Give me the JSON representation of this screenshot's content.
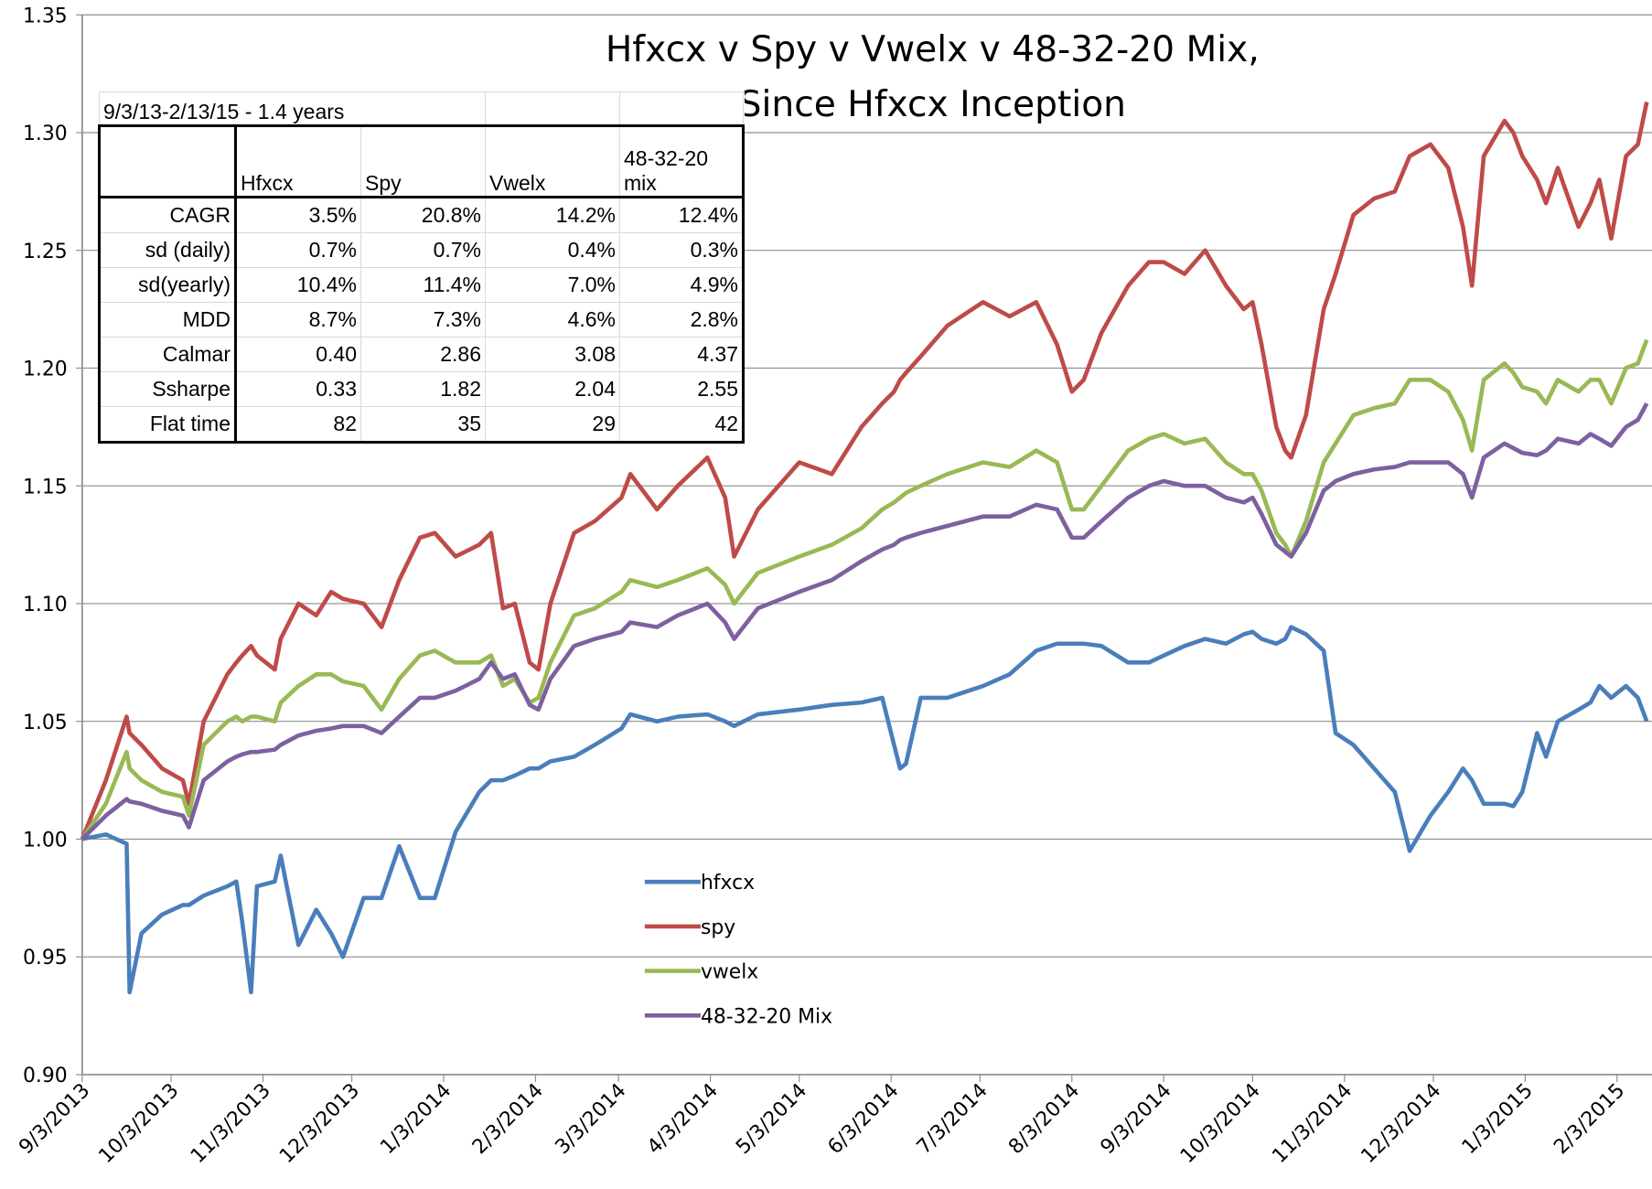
{
  "chart_data": {
    "type": "line",
    "title": [
      "Hfxcx v Spy v Vwelx v 48-32-20 Mix,",
      "Since Hfxcx Inception"
    ],
    "x": [
      "9/3/2013",
      "9/11/2013",
      "9/18/2013",
      "9/19/2013",
      "9/23/2013",
      "9/30/2013",
      "10/7/2013",
      "10/9/2013",
      "10/14/2013",
      "10/22/2013",
      "10/25/2013",
      "10/27/2013",
      "10/30/2013",
      "11/1/2013",
      "11/7/2013",
      "11/9/2013",
      "11/15/2013",
      "11/21/2013",
      "11/26/2013",
      "11/30/2013",
      "12/7/2013",
      "12/13/2013",
      "12/19/2013",
      "12/26/2013",
      "12/31/2013",
      "1/7/2014",
      "1/15/2014",
      "1/19/2014",
      "1/23/2014",
      "1/27/2014",
      "2/1/2014",
      "2/4/2014",
      "2/8/2014",
      "2/16/2014",
      "2/23/2014",
      "3/4/2014",
      "3/7/2014",
      "3/16/2014",
      "3/23/2014",
      "4/2/2014",
      "4/8/2014",
      "4/11/2014",
      "4/19/2014",
      "5/3/2014",
      "5/14/2014",
      "5/24/2014",
      "5/31/2014",
      "6/4/2014",
      "6/6/2014",
      "6/8/2014",
      "6/13/2014",
      "6/22/2014",
      "7/4/2014",
      "7/13/2014",
      "7/22/2014",
      "7/29/2014",
      "8/3/2014",
      "8/7/2014",
      "8/13/2014",
      "8/22/2014",
      "8/29/2014",
      "9/3/2014",
      "9/10/2014",
      "9/17/2014",
      "9/24/2014",
      "9/30/2014",
      "10/3/2014",
      "10/6/2014",
      "10/11/2014",
      "10/14/2014",
      "10/16/2014",
      "10/21/2014",
      "10/27/2014",
      "10/31/2014",
      "11/6/2014",
      "11/13/2014",
      "11/20/2014",
      "11/25/2014",
      "12/2/2014",
      "12/8/2014",
      "12/13/2014",
      "12/16/2014",
      "12/20/2014",
      "12/27/2014",
      "12/30/2014",
      "1/2/2015",
      "1/7/2015",
      "1/10/2015",
      "1/14/2015",
      "1/21/2015",
      "1/25/2015",
      "1/28/2015",
      "2/1/2015",
      "2/6/2015",
      "2/10/2015",
      "2/13/2015"
    ],
    "series": [
      {
        "name": "hfxcx",
        "color": "#4a7ebb",
        "values": [
          1.0,
          1.002,
          0.998,
          0.935,
          0.96,
          0.968,
          0.972,
          0.972,
          0.976,
          0.98,
          0.982,
          0.965,
          0.935,
          0.98,
          0.982,
          0.993,
          0.955,
          0.97,
          0.96,
          0.95,
          0.975,
          0.975,
          0.997,
          0.975,
          0.975,
          1.003,
          1.02,
          1.025,
          1.025,
          1.027,
          1.03,
          1.03,
          1.033,
          1.035,
          1.04,
          1.047,
          1.053,
          1.05,
          1.052,
          1.053,
          1.05,
          1.048,
          1.053,
          1.055,
          1.057,
          1.058,
          1.06,
          1.04,
          1.03,
          1.032,
          1.06,
          1.06,
          1.065,
          1.07,
          1.08,
          1.083,
          1.083,
          1.083,
          1.082,
          1.075,
          1.075,
          1.078,
          1.082,
          1.085,
          1.083,
          1.087,
          1.088,
          1.085,
          1.083,
          1.085,
          1.09,
          1.087,
          1.08,
          1.045,
          1.04,
          1.03,
          1.02,
          0.995,
          1.01,
          1.02,
          1.03,
          1.025,
          1.015,
          1.015,
          1.014,
          1.02,
          1.045,
          1.035,
          1.05,
          1.055,
          1.058,
          1.065,
          1.06,
          1.065,
          1.06,
          1.05
        ]
      },
      {
        "name": "spy",
        "color": "#be4b48",
        "values": [
          1.0,
          1.025,
          1.052,
          1.045,
          1.04,
          1.03,
          1.025,
          1.015,
          1.05,
          1.07,
          1.075,
          1.078,
          1.082,
          1.078,
          1.072,
          1.085,
          1.1,
          1.095,
          1.105,
          1.102,
          1.1,
          1.09,
          1.11,
          1.128,
          1.13,
          1.12,
          1.125,
          1.13,
          1.098,
          1.1,
          1.075,
          1.072,
          1.1,
          1.13,
          1.135,
          1.145,
          1.155,
          1.14,
          1.15,
          1.162,
          1.145,
          1.12,
          1.14,
          1.16,
          1.155,
          1.175,
          1.185,
          1.19,
          1.195,
          1.198,
          1.205,
          1.218,
          1.228,
          1.222,
          1.228,
          1.21,
          1.19,
          1.195,
          1.215,
          1.235,
          1.245,
          1.245,
          1.24,
          1.25,
          1.235,
          1.225,
          1.228,
          1.21,
          1.175,
          1.165,
          1.162,
          1.18,
          1.225,
          1.24,
          1.265,
          1.272,
          1.275,
          1.29,
          1.295,
          1.285,
          1.26,
          1.235,
          1.29,
          1.305,
          1.3,
          1.29,
          1.28,
          1.27,
          1.285,
          1.26,
          1.27,
          1.28,
          1.255,
          1.29,
          1.295,
          1.313
        ]
      },
      {
        "name": "vwelx",
        "color": "#98b954",
        "values": [
          1.0,
          1.015,
          1.037,
          1.03,
          1.025,
          1.02,
          1.018,
          1.01,
          1.04,
          1.05,
          1.052,
          1.05,
          1.052,
          1.052,
          1.05,
          1.058,
          1.065,
          1.07,
          1.07,
          1.067,
          1.065,
          1.055,
          1.068,
          1.078,
          1.08,
          1.075,
          1.075,
          1.078,
          1.065,
          1.068,
          1.058,
          1.06,
          1.075,
          1.095,
          1.098,
          1.105,
          1.11,
          1.107,
          1.11,
          1.115,
          1.108,
          1.1,
          1.113,
          1.12,
          1.125,
          1.132,
          1.14,
          1.143,
          1.145,
          1.147,
          1.15,
          1.155,
          1.16,
          1.158,
          1.165,
          1.16,
          1.14,
          1.14,
          1.15,
          1.165,
          1.17,
          1.172,
          1.168,
          1.17,
          1.16,
          1.155,
          1.155,
          1.148,
          1.13,
          1.125,
          1.12,
          1.135,
          1.16,
          1.168,
          1.18,
          1.183,
          1.185,
          1.195,
          1.195,
          1.19,
          1.178,
          1.165,
          1.195,
          1.202,
          1.198,
          1.192,
          1.19,
          1.185,
          1.195,
          1.19,
          1.195,
          1.195,
          1.185,
          1.2,
          1.202,
          1.212
        ]
      },
      {
        "name": "48-32-20 Mix",
        "color": "#7d60a0",
        "values": [
          1.0,
          1.01,
          1.017,
          1.016,
          1.015,
          1.012,
          1.01,
          1.005,
          1.025,
          1.033,
          1.035,
          1.036,
          1.037,
          1.037,
          1.038,
          1.04,
          1.044,
          1.046,
          1.047,
          1.048,
          1.048,
          1.045,
          1.052,
          1.06,
          1.06,
          1.063,
          1.068,
          1.075,
          1.068,
          1.07,
          1.057,
          1.055,
          1.068,
          1.082,
          1.085,
          1.088,
          1.092,
          1.09,
          1.095,
          1.1,
          1.092,
          1.085,
          1.098,
          1.105,
          1.11,
          1.118,
          1.123,
          1.125,
          1.127,
          1.128,
          1.13,
          1.133,
          1.137,
          1.137,
          1.142,
          1.14,
          1.128,
          1.128,
          1.135,
          1.145,
          1.15,
          1.152,
          1.15,
          1.15,
          1.145,
          1.143,
          1.145,
          1.138,
          1.125,
          1.122,
          1.12,
          1.13,
          1.148,
          1.152,
          1.155,
          1.157,
          1.158,
          1.16,
          1.16,
          1.16,
          1.155,
          1.145,
          1.162,
          1.168,
          1.166,
          1.164,
          1.163,
          1.165,
          1.17,
          1.168,
          1.172,
          1.17,
          1.167,
          1.175,
          1.178,
          1.185
        ]
      }
    ],
    "xlim": [
      "9/3/2013",
      "2/13/2015"
    ],
    "xticks": [
      "9/3/2013",
      "10/3/2013",
      "11/3/2013",
      "12/3/2013",
      "1/3/2014",
      "2/3/2014",
      "3/3/2014",
      "4/3/2014",
      "5/3/2014",
      "6/3/2014",
      "7/3/2014",
      "8/3/2014",
      "9/3/2014",
      "10/3/2014",
      "11/3/2014",
      "12/3/2014",
      "1/3/2015",
      "2/3/2015"
    ],
    "ylim": [
      0.9,
      1.35
    ],
    "yticks": [
      {
        "value": 0.9,
        "label": "0.90"
      },
      0.95,
      {
        "value": 1.0,
        "label": "1.00"
      },
      1.05,
      {
        "value": 1.1,
        "label": "1.10"
      },
      1.15,
      {
        "value": 1.2,
        "label": "1.20"
      },
      1.25,
      {
        "value": 1.3,
        "label": "1.30"
      },
      1.35
    ],
    "grid": true
  },
  "table": {
    "title": "9/3/13-2/13/15 - 1.4 years",
    "columns": [
      "Hfxcx",
      "Spy",
      "Vwelx",
      "48-32-20 mix"
    ],
    "rows": [
      [
        "CAGR",
        "3.5%",
        "20.8%",
        "14.2%",
        "12.4%"
      ],
      [
        "sd (daily)",
        "0.7%",
        "0.7%",
        "0.4%",
        "0.3%"
      ],
      [
        "sd(yearly)",
        "10.4%",
        "11.4%",
        "7.0%",
        "4.9%"
      ],
      [
        "MDD",
        "8.7%",
        "7.3%",
        "4.6%",
        "2.8%"
      ],
      [
        "Calmar",
        "0.40",
        "2.86",
        "3.08",
        "4.37"
      ],
      [
        "Ssharpe",
        "0.33",
        "1.82",
        "2.04",
        "2.55"
      ],
      [
        "Flat time",
        "82",
        "35",
        "29",
        "42"
      ]
    ]
  }
}
